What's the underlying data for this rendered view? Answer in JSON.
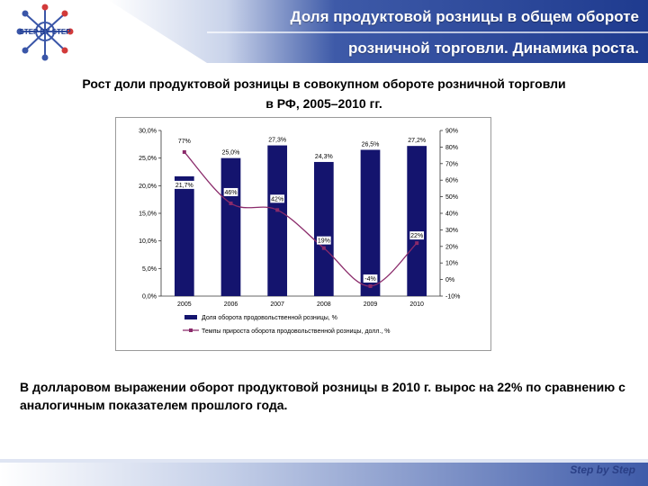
{
  "header": {
    "title_line1": "Доля продуктовой розницы в общем обороте",
    "title_line2": "розничной торговли. Динамика роста.",
    "logo_text": "STEP BY STEP"
  },
  "subtitle": {
    "line1": "Рост доли продуктовой розницы в совокупном обороте розничной торговли",
    "line2": "в РФ, 2005–2010 гг."
  },
  "chart_data": {
    "type": "bar",
    "categories": [
      "2005",
      "2006",
      "2007",
      "2008",
      "2009",
      "2010"
    ],
    "series": [
      {
        "name": "Доля оборота продовольственной розницы, %",
        "type": "bar",
        "axis": "left",
        "values": [
          21.7,
          25.0,
          27.3,
          24.3,
          26.5,
          27.2
        ],
        "labels": [
          "21,7%",
          "25,0%",
          "27,3%",
          "24,3%",
          "26,5%",
          "27,2%"
        ],
        "color": "#14146e"
      },
      {
        "name": "Темпы прироста оборота продовольственной розницы, долл., %",
        "type": "line",
        "axis": "right",
        "values": [
          77,
          46,
          42,
          19,
          -4,
          22
        ],
        "labels": [
          "77%",
          "46%",
          "42%",
          "19%",
          "-4%",
          "22%"
        ],
        "color": "#8a2a6a"
      }
    ],
    "y_left": {
      "min": 0,
      "max": 30,
      "ticks": [
        "0,0%",
        "5,0%",
        "10,0%",
        "15,0%",
        "20,0%",
        "25,0%",
        "30,0%"
      ]
    },
    "y_right": {
      "min": -10,
      "max": 90,
      "ticks": [
        "-10%",
        "0%",
        "10%",
        "20%",
        "30%",
        "40%",
        "50%",
        "60%",
        "70%",
        "80%",
        "90%"
      ]
    },
    "grid": false,
    "legend": "bottom"
  },
  "note": {
    "text": "В долларовом выражении оборот продуктовой розницы в 2010 г. вырос на 22% по сравнению с аналогичным показателем прошлого года."
  },
  "footer": {
    "logo_text": "Step by Step"
  },
  "colors": {
    "header_blue": "#2c4a9e",
    "accent_dark": "#1c2f7a",
    "bar": "#14146e",
    "line": "#8a2a6a"
  }
}
